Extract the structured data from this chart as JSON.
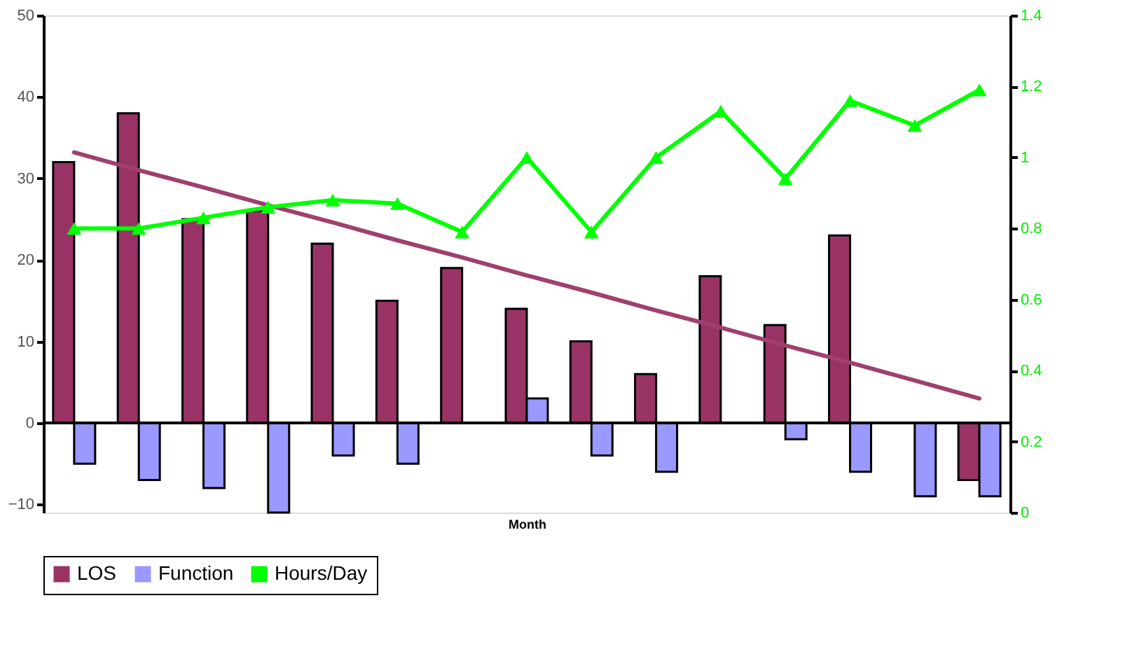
{
  "chart_data": {
    "type": "bar",
    "xlabel": "Month",
    "categories": [
      null,
      null,
      null,
      null,
      null,
      null,
      null,
      null,
      null,
      null,
      null,
      null,
      null,
      null,
      null
    ],
    "ylim": [
      -11,
      50
    ],
    "yticks": [
      -10,
      0,
      10,
      20,
      30,
      40,
      50
    ],
    "y2lim": [
      0,
      1.4
    ],
    "y2ticks": [
      0,
      0.2,
      0.4,
      0.6,
      0.8,
      1,
      1.2,
      1.4
    ],
    "series": [
      {
        "name": "LOS",
        "color": "#993366",
        "values": [
          32,
          38,
          25,
          26,
          22,
          15,
          19,
          14,
          10,
          6,
          18,
          12,
          23,
          null,
          -7
        ]
      },
      {
        "name": "Function",
        "color": "#9999ff",
        "values": [
          -5,
          -7,
          -8,
          -11,
          -4,
          -5,
          null,
          3,
          -4,
          -6,
          null,
          -2,
          -6,
          -9,
          -9
        ]
      },
      {
        "name": "Hours/Day",
        "type": "line",
        "axis": "y2",
        "color": "#00ff00",
        "marker": "triangle",
        "line_style": "solid",
        "values": [
          0.8,
          0.8,
          0.83,
          0.86,
          0.88,
          0.87,
          0.79,
          1.0,
          0.79,
          1.0,
          1.13,
          0.94,
          1.16,
          1.09,
          1.19
        ]
      },
      {
        "type": "line",
        "color": "#a0406e",
        "marker": "none",
        "line_style": "solid",
        "values": [
          33.2,
          31.0,
          28.9,
          26.7,
          24.6,
          22.4,
          20.3,
          18.1,
          16.0,
          13.8,
          11.7,
          9.5,
          7.4,
          5.2,
          3.0
        ]
      }
    ],
    "ref_lines": [
      {
        "axis": "y",
        "value": 0,
        "color": "#000000"
      }
    ],
    "grid": false,
    "legend": "bottom",
    "tick_labels": "y"
  }
}
